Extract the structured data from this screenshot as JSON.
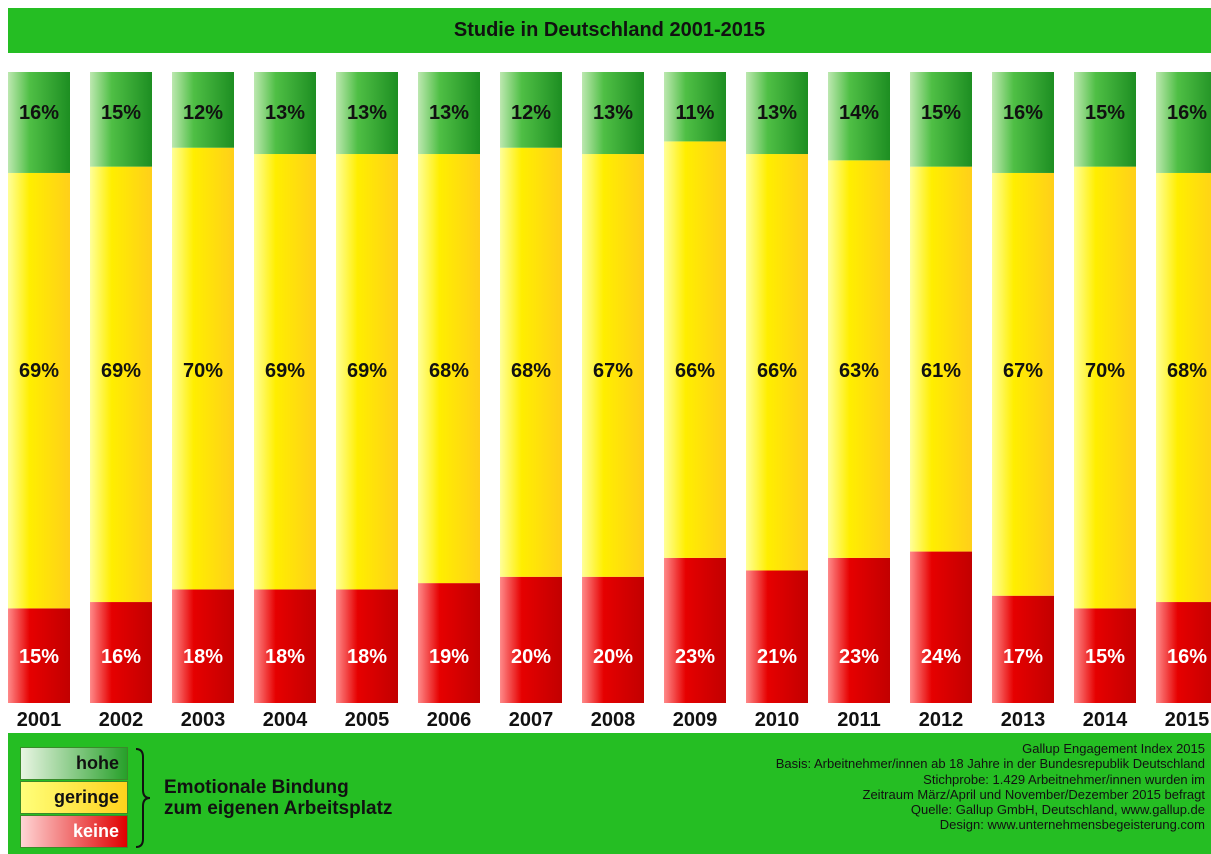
{
  "title": "Studie in Deutschland 2001-2015",
  "chart_data": {
    "type": "bar",
    "stacked": true,
    "orientation": "vertical",
    "categories": [
      "2001",
      "2002",
      "2003",
      "2004",
      "2005",
      "2006",
      "2007",
      "2008",
      "2009",
      "2010",
      "2011",
      "2012",
      "2013",
      "2014",
      "2015"
    ],
    "series": [
      {
        "name": "keine",
        "color": "#e00000",
        "values": [
          15,
          16,
          18,
          18,
          18,
          19,
          20,
          20,
          23,
          21,
          23,
          24,
          17,
          15,
          16
        ]
      },
      {
        "name": "geringe",
        "color": "#ffe400",
        "values": [
          69,
          69,
          70,
          69,
          69,
          68,
          68,
          67,
          66,
          66,
          63,
          61,
          67,
          70,
          68
        ]
      },
      {
        "name": "hohe",
        "color": "#2aa12c",
        "values": [
          16,
          15,
          12,
          13,
          13,
          13,
          12,
          13,
          11,
          13,
          14,
          15,
          16,
          15,
          16
        ]
      }
    ],
    "value_suffix": "%",
    "ylim": [
      0,
      100
    ]
  },
  "legend": {
    "items": [
      {
        "label": "hohe",
        "color": "#2aa12c"
      },
      {
        "label": "geringe",
        "color": "#ffe400"
      },
      {
        "label": "keine",
        "color": "#e00000"
      }
    ],
    "caption_line1": "Emotionale Bindung",
    "caption_line2": "zum eigenen Arbeitsplatz"
  },
  "source": {
    "line1": "Gallup Engagement Index 2015",
    "line2": "Basis: Arbeitnehmer/innen ab 18 Jahre in der Bundesrepublik Deutschland",
    "line3": "Stichprobe: 1.429 Arbeitnehmer/innen wurden im",
    "line4": "Zeitraum März/April und November/Dezember 2015 befragt",
    "line5": "Quelle: Gallup GmbH, Deutschland, www.gallup.de",
    "line6": "Design: www.unternehmensbegeisterung.com"
  }
}
